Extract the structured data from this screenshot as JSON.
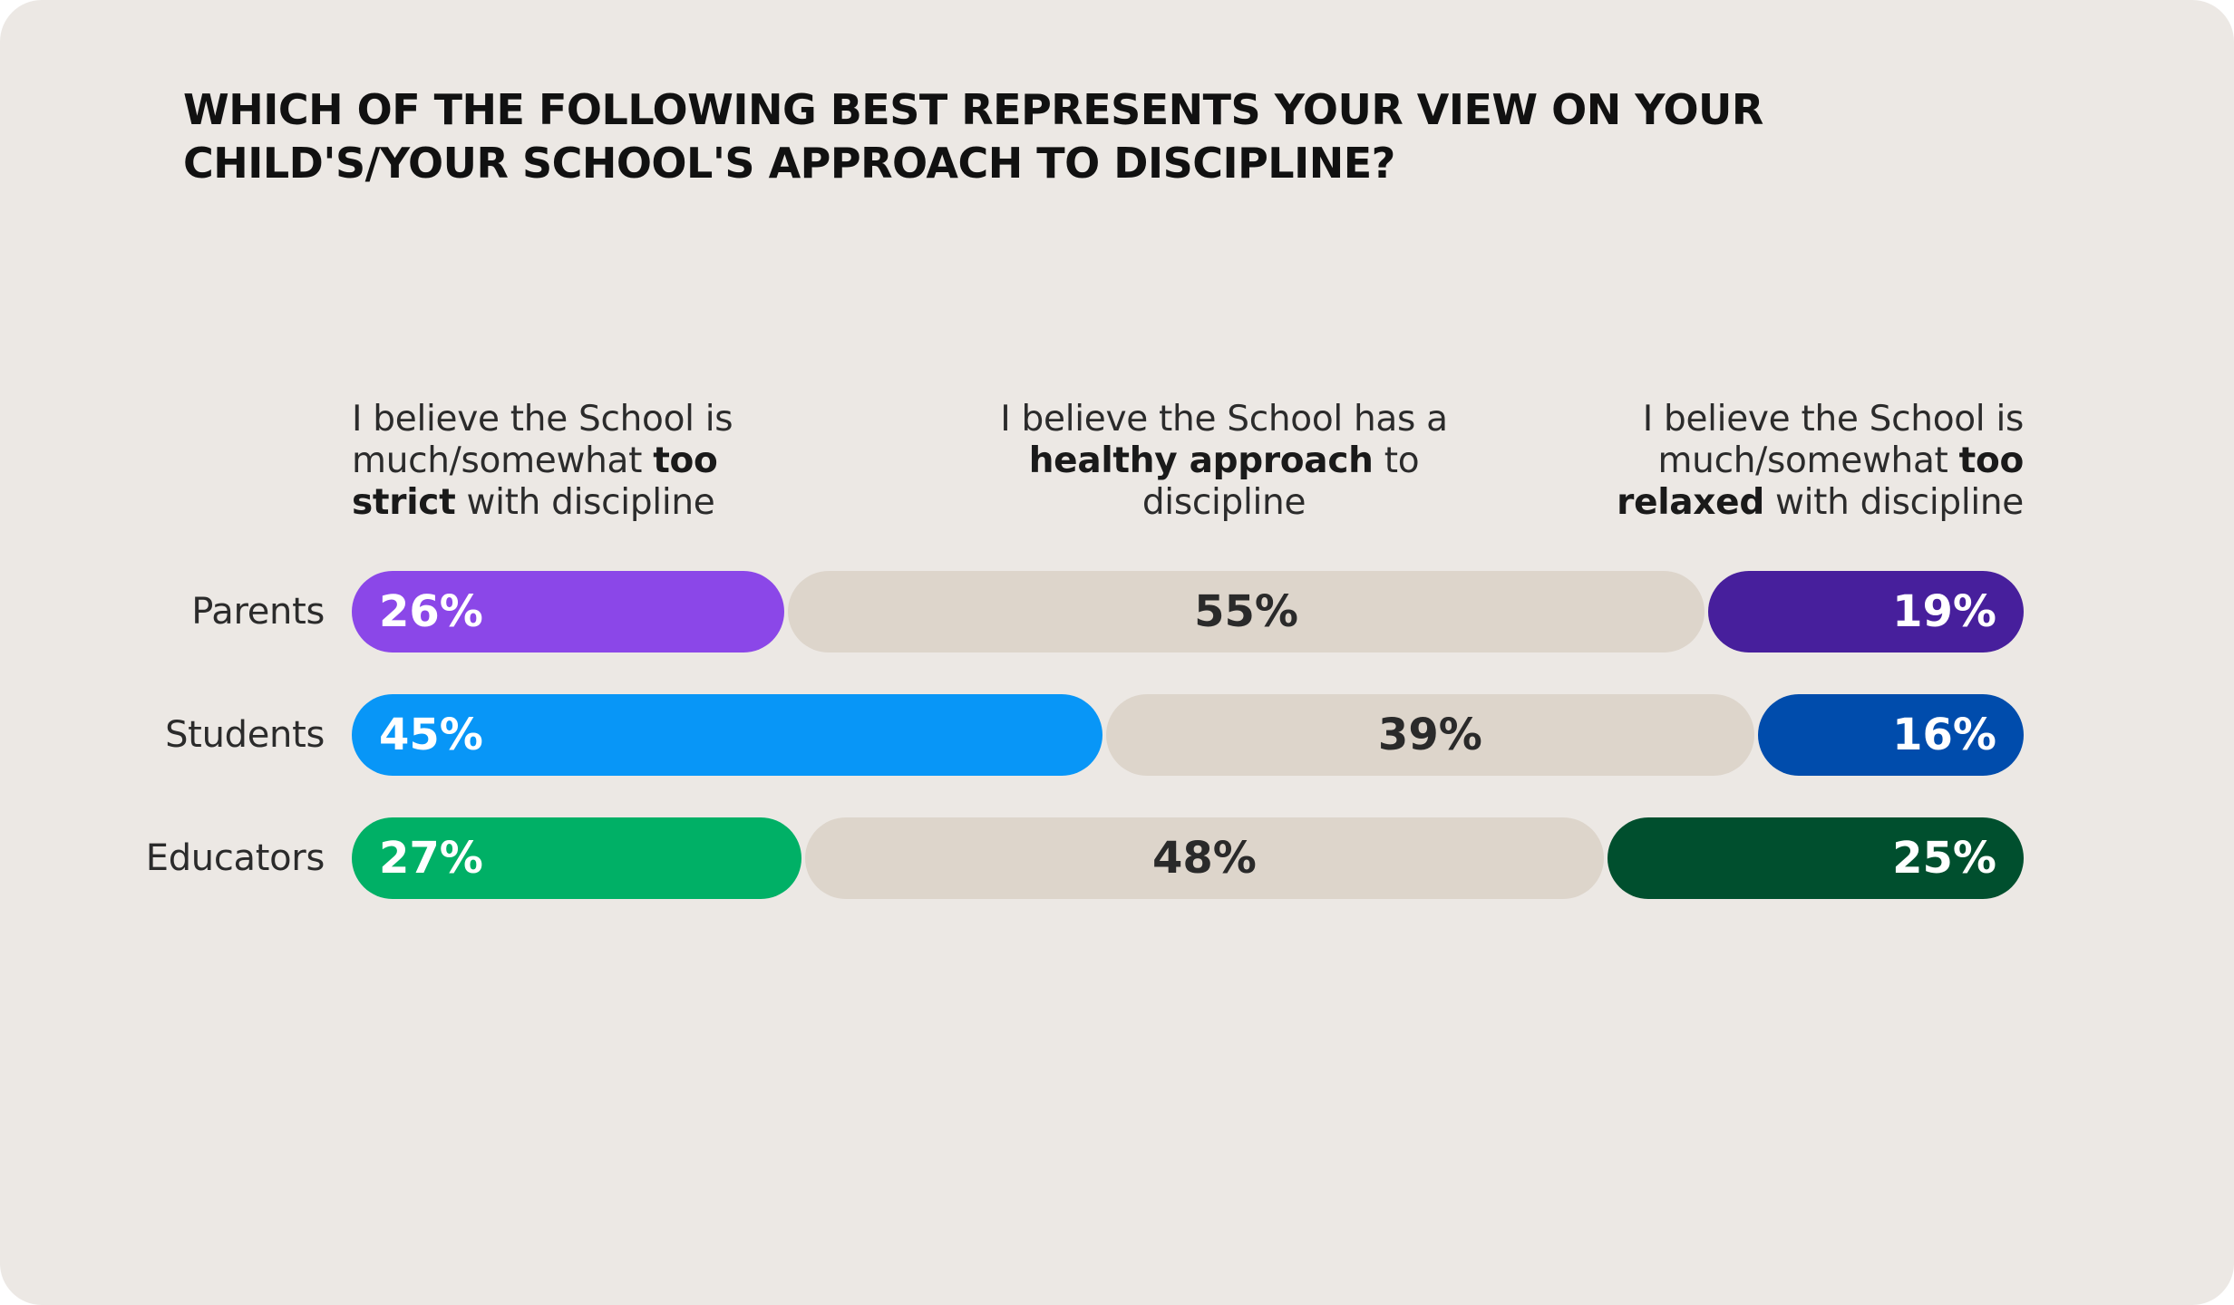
{
  "chart_data": {
    "type": "bar",
    "stacked": true,
    "orientation": "horizontal",
    "title": "WHICH OF THE FOLLOWING BEST REPRESENTS YOUR VIEW ON YOUR CHILD'S/YOUR SCHOOL'S APPROACH TO DISCIPLINE?",
    "categories": [
      "Parents",
      "Students",
      "Educators"
    ],
    "series": [
      {
        "name": "I believe the School is much/somewhat too strict with discipline",
        "values": [
          26,
          45,
          27
        ],
        "labels": [
          "26%",
          "45%",
          "27%"
        ],
        "colors": [
          "#8b47e8",
          "#0896f7",
          "#00b066"
        ],
        "text_color": "#ffffff"
      },
      {
        "name": "I believe the School has a healthy approach to discipline",
        "values": [
          55,
          39,
          48
        ],
        "labels": [
          "55%",
          "39%",
          "48%"
        ],
        "colors": [
          "#ddd5cb",
          "#ddd5cb",
          "#ddd5cb"
        ],
        "text_color": "#2a2a2a"
      },
      {
        "name": "I believe the School is much/somewhat too relaxed with discipline",
        "values": [
          19,
          16,
          25
        ],
        "labels": [
          "19%",
          "16%",
          "25%"
        ],
        "colors": [
          "#471f9c",
          "#004cac",
          "#004f2e"
        ],
        "text_color": "#ffffff"
      }
    ],
    "xlim": [
      0,
      100
    ],
    "legend_placement": "top",
    "grid": false
  },
  "headers": {
    "left": {
      "p1": "I believe the School is much/somewhat ",
      "bold": "too strict",
      "p2": " with discipline"
    },
    "mid": {
      "p1": "I believe the School has a ",
      "bold": "healthy approach",
      "p2": " to discipline"
    },
    "right": {
      "p1": "I believe the School is much/somewhat ",
      "bold": "too relaxed",
      "p2": " with discipline"
    }
  }
}
